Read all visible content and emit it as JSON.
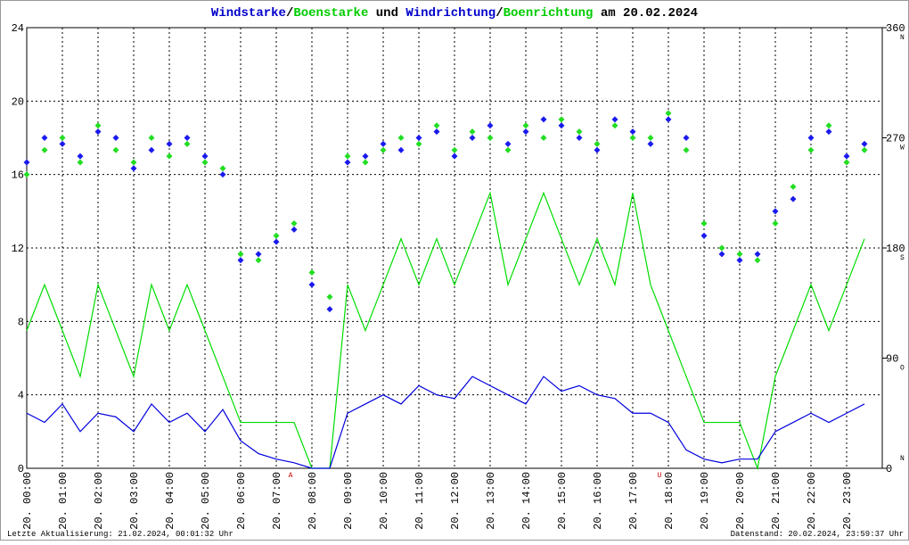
{
  "chart_data": {
    "type": "wind",
    "title_parts": [
      {
        "text": "Windstarke",
        "color": "#0000cc"
      },
      {
        "text": "/",
        "color": "#000000"
      },
      {
        "text": "Boenstarke",
        "color": "#00cc00"
      },
      {
        "text": " und ",
        "color": "#000000"
      },
      {
        "text": "Windrichtung",
        "color": "#0000cc"
      },
      {
        "text": "/",
        "color": "#000000"
      },
      {
        "text": "Boenrichtung",
        "color": "#00cc00"
      },
      {
        "text": " am 20.02.2024",
        "color": "#000000"
      }
    ],
    "footer_left": "Letzte Aktualisierung: 21.02.2024, 00:01:32 Uhr",
    "footer_right": "Datenstand: 20.02.2024, 23:59:37 Uhr",
    "xlim": [
      0,
      24
    ],
    "xticks": [
      {
        "value": 0,
        "label": "20. 00:00"
      },
      {
        "value": 1,
        "label": "20. 01:00"
      },
      {
        "value": 2,
        "label": "20. 02:00"
      },
      {
        "value": 3,
        "label": "20. 03:00"
      },
      {
        "value": 4,
        "label": "20. 04:00"
      },
      {
        "value": 5,
        "label": "20. 05:00"
      },
      {
        "value": 6,
        "label": "20. 06:00"
      },
      {
        "value": 7,
        "label": "20. 07:00"
      },
      {
        "value": 8,
        "label": "20. 08:00"
      },
      {
        "value": 9,
        "label": "20. 09:00"
      },
      {
        "value": 10,
        "label": "20. 10:00"
      },
      {
        "value": 11,
        "label": "20. 11:00"
      },
      {
        "value": 12,
        "label": "20. 12:00"
      },
      {
        "value": 13,
        "label": "20. 13:00"
      },
      {
        "value": 14,
        "label": "20. 14:00"
      },
      {
        "value": 15,
        "label": "20. 15:00"
      },
      {
        "value": 16,
        "label": "20. 16:00"
      },
      {
        "value": 17,
        "label": "20. 17:00"
      },
      {
        "value": 18,
        "label": "20. 18:00"
      },
      {
        "value": 19,
        "label": "20. 19:00"
      },
      {
        "value": 20,
        "label": "20. 20:00"
      },
      {
        "value": 21,
        "label": "20. 21:00"
      },
      {
        "value": 22,
        "label": "20. 22:00"
      },
      {
        "value": 23,
        "label": "20. 23:00"
      }
    ],
    "ylim": [
      0,
      24
    ],
    "yticks": [
      0,
      4,
      8,
      12,
      16,
      20,
      24
    ],
    "y2lim": [
      0,
      360
    ],
    "y2ticks": [
      0,
      90,
      180,
      270,
      360
    ],
    "y2tick_compass": [
      "N",
      "O",
      "S",
      "W",
      "N"
    ],
    "annotations": [
      {
        "label": "A",
        "x": 7.4,
        "color": "#cc0000"
      },
      {
        "label": "U",
        "x": 17.75,
        "color": "#cc0000"
      }
    ],
    "x": [
      0,
      0.5,
      1,
      1.5,
      2,
      2.5,
      3,
      3.5,
      4,
      4.5,
      5,
      5.5,
      6,
      6.5,
      7,
      7.5,
      8,
      8.5,
      9,
      9.5,
      10,
      10.5,
      11,
      11.5,
      12,
      12.5,
      13,
      13.5,
      14,
      14.5,
      15,
      15.5,
      16,
      16.5,
      17,
      17.5,
      18,
      18.5,
      19,
      19.5,
      20,
      20.5,
      21,
      21.5,
      22,
      22.5,
      23,
      23.5
    ],
    "series": [
      {
        "name": "Boenstarke",
        "color": "#00dd00",
        "kind": "line",
        "values": [
          7.5,
          10,
          7.5,
          5,
          10,
          7.5,
          5,
          10,
          7.5,
          10,
          7.5,
          5,
          2.5,
          2.5,
          2.5,
          2.5,
          0,
          0,
          10,
          7.5,
          10,
          12.5,
          10,
          12.5,
          10,
          12.5,
          15,
          10,
          12.5,
          15,
          12.5,
          10,
          12.5,
          10,
          15,
          10,
          7.5,
          5,
          2.5,
          2.5,
          2.5,
          0,
          5,
          7.5,
          10,
          7.5,
          10,
          12.5
        ]
      },
      {
        "name": "Windstarke",
        "color": "#0000dd",
        "kind": "line",
        "values": [
          3,
          2.5,
          3.5,
          2,
          3,
          2.8,
          2,
          3.5,
          2.5,
          3,
          2,
          3.2,
          1.5,
          0.8,
          0.5,
          0.3,
          0,
          0,
          3,
          3.5,
          4,
          3.5,
          4.5,
          4,
          3.8,
          5,
          4.5,
          4,
          3.5,
          5,
          4.2,
          4.5,
          4,
          3.8,
          3,
          3,
          2.5,
          1,
          0.5,
          0.3,
          0.5,
          0.5,
          2,
          2.5,
          3,
          2.5,
          3,
          3.5
        ]
      },
      {
        "name": "Boenrichtung",
        "color": "#22dd22",
        "kind": "points",
        "axis": "y2",
        "values": [
          240,
          260,
          270,
          250,
          280,
          260,
          250,
          270,
          255,
          265,
          250,
          245,
          175,
          170,
          190,
          200,
          160,
          140,
          255,
          250,
          260,
          270,
          265,
          280,
          260,
          275,
          270,
          260,
          280,
          270,
          285,
          275,
          265,
          280,
          270,
          270,
          290,
          260,
          200,
          180,
          175,
          170,
          200,
          230,
          260,
          280,
          250,
          260
        ]
      },
      {
        "name": "Windrichtung",
        "color": "#1a1aee",
        "kind": "points",
        "axis": "y2",
        "values": [
          250,
          270,
          265,
          255,
          275,
          270,
          245,
          260,
          265,
          270,
          255,
          240,
          170,
          175,
          185,
          195,
          150,
          130,
          250,
          255,
          265,
          260,
          270,
          275,
          255,
          270,
          280,
          265,
          275,
          285,
          280,
          270,
          260,
          285,
          275,
          265,
          285,
          270,
          190,
          175,
          170,
          175,
          210,
          220,
          270,
          275,
          255,
          265
        ]
      }
    ]
  }
}
